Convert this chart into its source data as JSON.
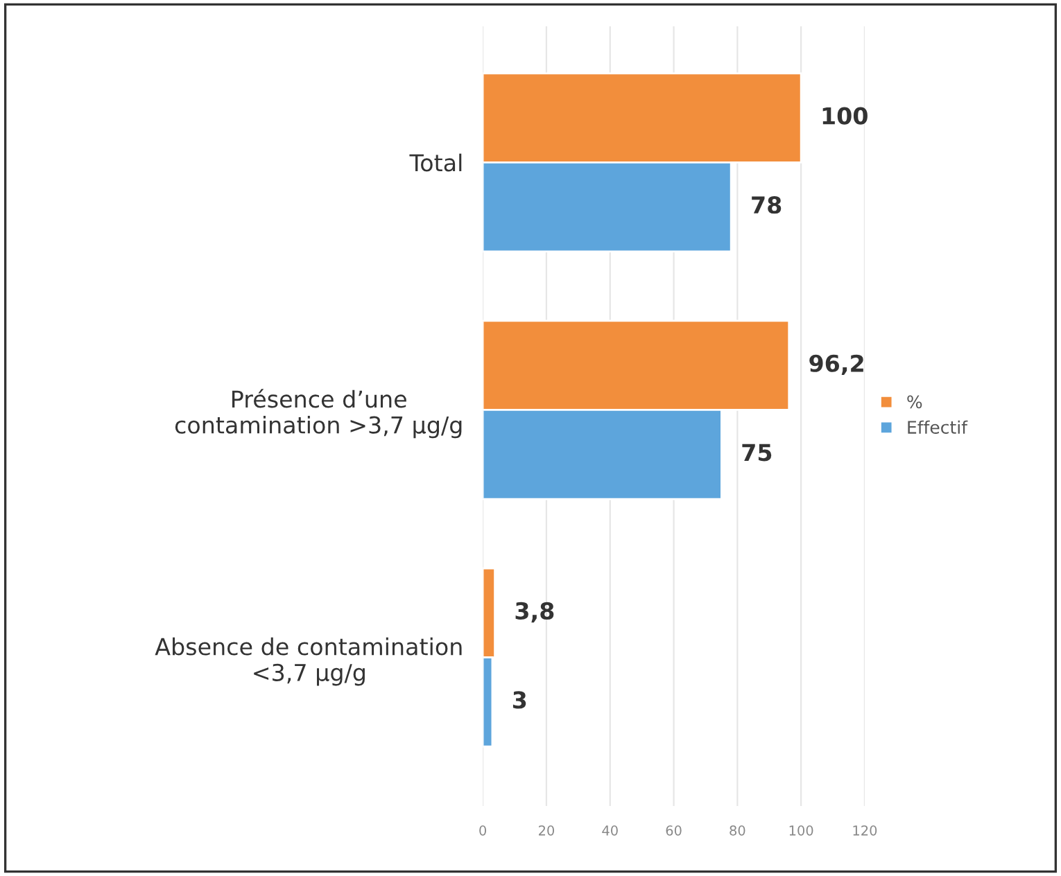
{
  "chart_data": {
    "type": "bar",
    "orientation": "horizontal",
    "categories": [
      "Total",
      "Présence d’une\ncontamination >3,7 µg/g",
      "Absence de contamination\n<3,7 µg/g"
    ],
    "series": [
      {
        "name": "%",
        "color": "#f28e3c",
        "values": [
          100,
          96.2,
          3.8
        ],
        "value_labels": [
          "100",
          "96,2",
          "3,8"
        ]
      },
      {
        "name": "Effectif",
        "color": "#5da5dc",
        "values": [
          78,
          75,
          3
        ],
        "value_labels": [
          "78",
          "75",
          "3"
        ]
      }
    ],
    "xlim": [
      0,
      120
    ],
    "xticks": [
      0,
      20,
      40,
      60,
      80,
      100,
      120
    ],
    "grid": "x",
    "legend": "right"
  }
}
